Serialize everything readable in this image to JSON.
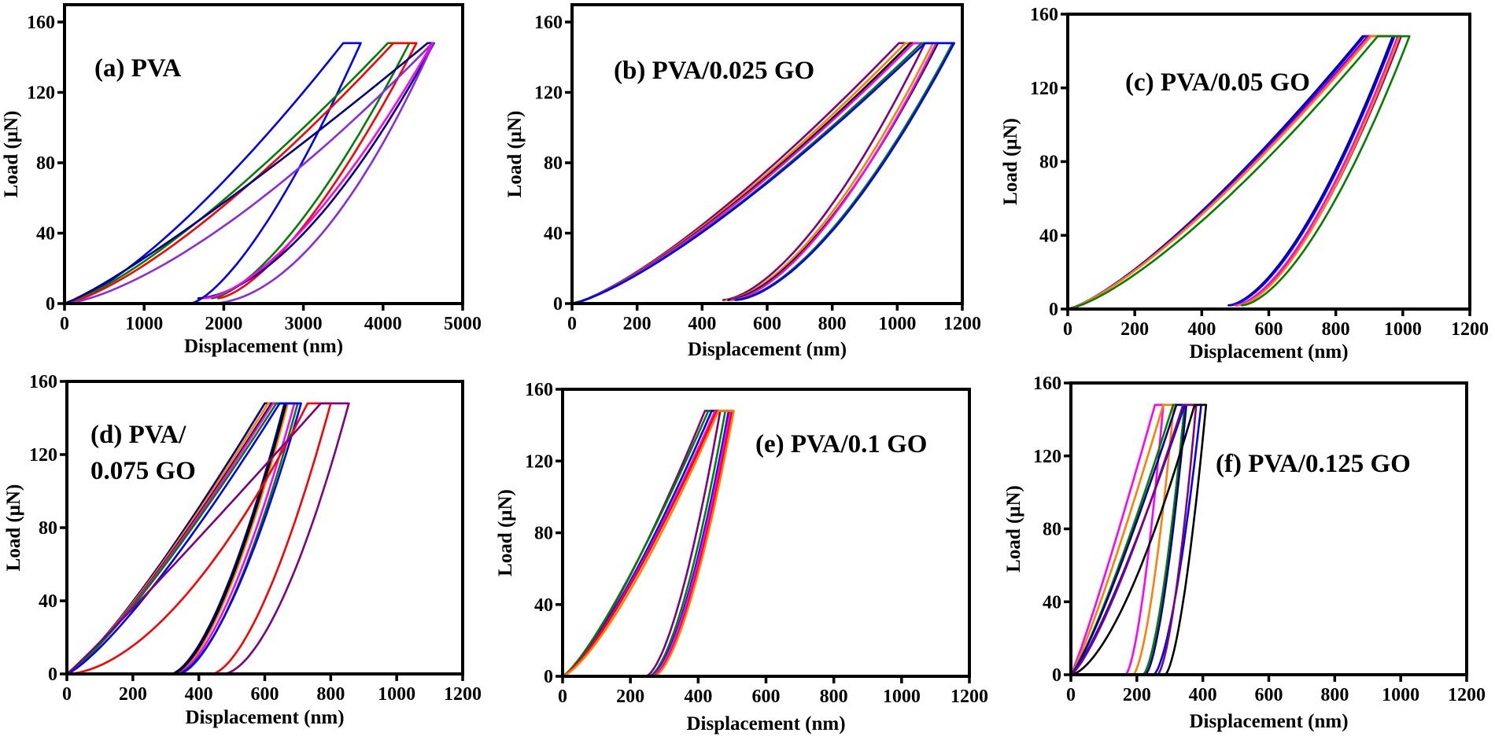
{
  "figure": {
    "description": "Load-displacement nanoindentation curves for PVA and PVA/GO films",
    "panel_count": 6
  },
  "colors": {
    "blue": "#0000ff",
    "navy": "#00008b",
    "green": "#008000",
    "red": "#ff0000",
    "magenta": "#ff00ff",
    "violet": "#8a2be2",
    "purple": "#800080",
    "orange": "#ff8000",
    "black": "#000000"
  },
  "chart_data": [
    {
      "id": "a",
      "type": "line",
      "title": "(a) PVA",
      "xlabel": "Displacement (nm)",
      "ylabel": "Load (μN)",
      "xlim": [
        0,
        5000
      ],
      "ylim": [
        0,
        160
      ],
      "xticks": [
        "0",
        "1000",
        "2000",
        "3000",
        "4000",
        "5000"
      ],
      "yticks": [
        "0",
        "40",
        "80",
        "120",
        "160"
      ],
      "title_position": "top-left",
      "grid": false,
      "max_load": 148,
      "series": [
        {
          "name": "blue",
          "color": "blue",
          "load_end_x": 3500,
          "hold_end_x": 3720,
          "residual_x": 1580,
          "unload_min_y": 0,
          "load_exp": 1.35,
          "unload_exp": 1.45
        },
        {
          "name": "green",
          "color": "green",
          "load_end_x": 4060,
          "hold_end_x": 4330,
          "residual_x": 1850,
          "unload_min_y": 3,
          "load_exp": 1.3,
          "unload_exp": 1.5
        },
        {
          "name": "red",
          "color": "red",
          "load_end_x": 4130,
          "hold_end_x": 4420,
          "residual_x": 1930,
          "unload_min_y": 3,
          "load_exp": 1.35,
          "unload_exp": 1.5
        },
        {
          "name": "navy",
          "color": "navy",
          "load_end_x": 4560,
          "hold_end_x": 4640,
          "residual_x": 1680,
          "unload_min_y": 3,
          "load_exp": 1.15,
          "unload_exp": 1.7
        },
        {
          "name": "violet",
          "color": "violet",
          "load_end_x": 4620,
          "hold_end_x": 4630,
          "residual_x": 1830,
          "unload_min_y": 0,
          "load_exp": 1.45,
          "unload_exp": 1.9
        },
        {
          "name": "magenta",
          "color": "magenta",
          "load_end_x": 4610,
          "hold_end_x": 4620,
          "residual_x": 1760,
          "unload_min_y": 3,
          "load_exp": 1.3,
          "unload_exp": 1.55,
          "unload_only": true
        }
      ]
    },
    {
      "id": "b",
      "type": "line",
      "title": "(b) PVA/0.025 GO",
      "xlabel": "Displacement (nm)",
      "ylabel": "Load (μN)",
      "xlim": [
        0,
        1200
      ],
      "ylim": [
        0,
        160
      ],
      "xticks": [
        "0",
        "200",
        "400",
        "600",
        "800",
        "1000",
        "1200"
      ],
      "yticks": [
        "0",
        "40",
        "80",
        "120",
        "160"
      ],
      "title_position": "top-left",
      "grid": false,
      "max_load": 148,
      "series": [
        {
          "name": "purple",
          "color": "purple",
          "load_end_x": 1005,
          "hold_end_x": 1085,
          "residual_x": 465,
          "unload_min_y": 2,
          "load_exp": 1.3,
          "unload_exp": 1.6
        },
        {
          "name": "orange",
          "color": "orange",
          "load_end_x": 1025,
          "hold_end_x": 1110,
          "residual_x": 475,
          "unload_min_y": 2,
          "load_exp": 1.3,
          "unload_exp": 1.6
        },
        {
          "name": "black",
          "color": "black",
          "load_end_x": 1040,
          "hold_end_x": 1125,
          "residual_x": 480,
          "unload_min_y": 2,
          "load_exp": 1.3,
          "unload_exp": 1.6
        },
        {
          "name": "magenta",
          "color": "magenta",
          "load_end_x": 1050,
          "hold_end_x": 1120,
          "residual_x": 490,
          "unload_min_y": 2,
          "load_exp": 1.3,
          "unload_exp": 1.6
        },
        {
          "name": "green",
          "color": "green",
          "load_end_x": 1075,
          "hold_end_x": 1170,
          "residual_x": 500,
          "unload_min_y": 2,
          "load_exp": 1.3,
          "unload_exp": 1.6
        },
        {
          "name": "blue",
          "color": "blue",
          "load_end_x": 1085,
          "hold_end_x": 1175,
          "residual_x": 505,
          "unload_min_y": 2,
          "load_exp": 1.3,
          "unload_exp": 1.6
        }
      ]
    },
    {
      "id": "c",
      "type": "line",
      "title": "(c) PVA/0.05 GO",
      "xlabel": "Displacement (nm)",
      "ylabel": "Load (μN)",
      "xlim": [
        0,
        1200
      ],
      "ylim": [
        0,
        160
      ],
      "xticks": [
        "0",
        "200",
        "400",
        "600",
        "800",
        "1000",
        "1200"
      ],
      "yticks": [
        "0",
        "40",
        "80",
        "120",
        "160"
      ],
      "title_position": "top-left",
      "grid": false,
      "max_load": 148,
      "series": [
        {
          "name": "navy",
          "color": "navy",
          "load_end_x": 880,
          "hold_end_x": 970,
          "residual_x": 480,
          "unload_min_y": 2,
          "load_exp": 1.3,
          "unload_exp": 1.6
        },
        {
          "name": "blue",
          "color": "blue",
          "load_end_x": 885,
          "hold_end_x": 975,
          "residual_x": 485,
          "unload_min_y": 2,
          "load_exp": 1.3,
          "unload_exp": 1.6
        },
        {
          "name": "purple",
          "color": "purple",
          "load_end_x": 895,
          "hold_end_x": 995,
          "residual_x": 505,
          "unload_min_y": 2,
          "load_exp": 1.3,
          "unload_exp": 1.6
        },
        {
          "name": "magenta",
          "color": "magenta",
          "load_end_x": 900,
          "hold_end_x": 985,
          "residual_x": 500,
          "unload_min_y": 2,
          "load_exp": 1.3,
          "unload_exp": 1.6
        },
        {
          "name": "orange",
          "color": "orange",
          "load_end_x": 905,
          "hold_end_x": 990,
          "residual_x": 510,
          "unload_min_y": 2,
          "load_exp": 1.3,
          "unload_exp": 1.6
        },
        {
          "name": "green",
          "color": "green",
          "load_end_x": 925,
          "hold_end_x": 1020,
          "residual_x": 520,
          "unload_min_y": 2,
          "load_exp": 1.35,
          "unload_exp": 1.6
        }
      ]
    },
    {
      "id": "d",
      "type": "line",
      "title": "(d) PVA/\n0.075 GO",
      "title_lines": [
        "(d) PVA/",
        "0.075 GO"
      ],
      "xlabel": "Displacement (nm)",
      "ylabel": "Load (μN)",
      "xlim": [
        0,
        1200
      ],
      "ylim": [
        0,
        160
      ],
      "xticks": [
        "0",
        "200",
        "400",
        "600",
        "800",
        "1000",
        "1200"
      ],
      "yticks": [
        "0",
        "40",
        "80",
        "120",
        "160"
      ],
      "title_position": "top-left",
      "grid": false,
      "max_load": 148,
      "series": [
        {
          "name": "navy",
          "color": "navy",
          "load_end_x": 600,
          "hold_end_x": 660,
          "residual_x": 315,
          "unload_min_y": 0,
          "load_exp": 1.2,
          "unload_exp": 1.6
        },
        {
          "name": "orange",
          "color": "orange",
          "load_end_x": 610,
          "hold_end_x": 670,
          "residual_x": 325,
          "unload_min_y": 0,
          "load_exp": 1.2,
          "unload_exp": 1.6
        },
        {
          "name": "black",
          "color": "black",
          "load_end_x": 620,
          "hold_end_x": 665,
          "residual_x": 320,
          "unload_min_y": 0,
          "load_exp": 1.2,
          "unload_exp": 1.6
        },
        {
          "name": "magenta",
          "color": "magenta",
          "load_end_x": 625,
          "hold_end_x": 690,
          "residual_x": 330,
          "unload_min_y": 0,
          "load_exp": 1.2,
          "unload_exp": 1.6
        },
        {
          "name": "green",
          "color": "green",
          "load_end_x": 635,
          "hold_end_x": 700,
          "residual_x": 340,
          "unload_min_y": 0,
          "load_exp": 1.2,
          "unload_exp": 1.6
        },
        {
          "name": "blue",
          "color": "blue",
          "load_end_x": 645,
          "hold_end_x": 710,
          "residual_x": 335,
          "unload_min_y": 0,
          "load_exp": 1.25,
          "unload_exp": 1.6
        },
        {
          "name": "red",
          "color": "red",
          "load_end_x": 730,
          "hold_end_x": 800,
          "residual_x": 440,
          "unload_min_y": 0,
          "load_exp": 1.75,
          "unload_exp": 1.6
        },
        {
          "name": "purple",
          "color": "purple",
          "load_end_x": 770,
          "hold_end_x": 855,
          "residual_x": 475,
          "unload_min_y": 0,
          "load_exp": 1.05,
          "unload_exp": 1.7
        }
      ]
    },
    {
      "id": "e",
      "type": "line",
      "title": "(e) PVA/0.1 GO",
      "xlabel": "Displacement (nm)",
      "ylabel": "Load (μN)",
      "xlim": [
        0,
        1200
      ],
      "ylim": [
        0,
        160
      ],
      "xticks": [
        "0",
        "200",
        "400",
        "600",
        "800",
        "1000",
        "1200"
      ],
      "yticks": [
        "0",
        "40",
        "80",
        "120",
        "160"
      ],
      "title_position": "top-right",
      "grid": false,
      "max_load": 148,
      "series": [
        {
          "name": "purple",
          "color": "purple",
          "load_end_x": 420,
          "hold_end_x": 465,
          "residual_x": 245,
          "unload_min_y": 0,
          "load_exp": 1.3,
          "unload_exp": 1.6
        },
        {
          "name": "green",
          "color": "green",
          "load_end_x": 430,
          "hold_end_x": 480,
          "residual_x": 255,
          "unload_min_y": 0,
          "load_exp": 1.25,
          "unload_exp": 1.6
        },
        {
          "name": "blue",
          "color": "blue",
          "load_end_x": 440,
          "hold_end_x": 490,
          "residual_x": 260,
          "unload_min_y": 0,
          "load_exp": 1.3,
          "unload_exp": 1.6
        },
        {
          "name": "magenta",
          "color": "magenta",
          "load_end_x": 450,
          "hold_end_x": 495,
          "residual_x": 262,
          "unload_min_y": 0,
          "load_exp": 1.3,
          "unload_exp": 1.6
        },
        {
          "name": "red",
          "color": "red",
          "load_end_x": 455,
          "hold_end_x": 500,
          "residual_x": 268,
          "unload_min_y": 0,
          "load_exp": 1.3,
          "unload_exp": 1.6
        },
        {
          "name": "orange",
          "color": "orange",
          "load_end_x": 460,
          "hold_end_x": 505,
          "residual_x": 270,
          "unload_min_y": 0,
          "load_exp": 1.35,
          "unload_exp": 1.6
        }
      ]
    },
    {
      "id": "f",
      "type": "line",
      "title": "(f) PVA/0.125 GO",
      "xlabel": "Displacement (nm)",
      "ylabel": "Load (μN)",
      "xlim": [
        0,
        1200
      ],
      "ylim": [
        0,
        160
      ],
      "xticks": [
        "0",
        "200",
        "400",
        "600",
        "800",
        "1000",
        "1200"
      ],
      "yticks": [
        "0",
        "40",
        "80",
        "120",
        "160"
      ],
      "title_position": "right-center",
      "grid": false,
      "max_load": 148,
      "series": [
        {
          "name": "magenta",
          "color": "magenta",
          "load_end_x": 255,
          "hold_end_x": 280,
          "residual_x": 165,
          "unload_min_y": 0,
          "load_exp": 1.1,
          "unload_exp": 1.6
        },
        {
          "name": "orange",
          "color": "orange",
          "load_end_x": 280,
          "hold_end_x": 312,
          "residual_x": 188,
          "unload_min_y": 0,
          "load_exp": 1.15,
          "unload_exp": 1.6
        },
        {
          "name": "green",
          "color": "green",
          "load_end_x": 310,
          "hold_end_x": 345,
          "residual_x": 218,
          "unload_min_y": 0,
          "load_exp": 1.2,
          "unload_exp": 1.6
        },
        {
          "name": "navy",
          "color": "navy",
          "load_end_x": 320,
          "hold_end_x": 350,
          "residual_x": 225,
          "unload_min_y": 0,
          "load_exp": 1.2,
          "unload_exp": 1.6
        },
        {
          "name": "blue",
          "color": "blue",
          "load_end_x": 345,
          "hold_end_x": 395,
          "residual_x": 250,
          "unload_min_y": 0,
          "load_exp": 1.25,
          "unload_exp": 1.6
        },
        {
          "name": "purple",
          "color": "purple",
          "load_end_x": 340,
          "hold_end_x": 380,
          "residual_x": 262,
          "unload_min_y": 0,
          "load_exp": 1.3,
          "unload_exp": 1.6
        },
        {
          "name": "black",
          "color": "black",
          "load_end_x": 375,
          "hold_end_x": 410,
          "residual_x": 285,
          "unload_min_y": 0,
          "load_exp": 1.6,
          "unload_exp": 1.6
        }
      ]
    }
  ]
}
